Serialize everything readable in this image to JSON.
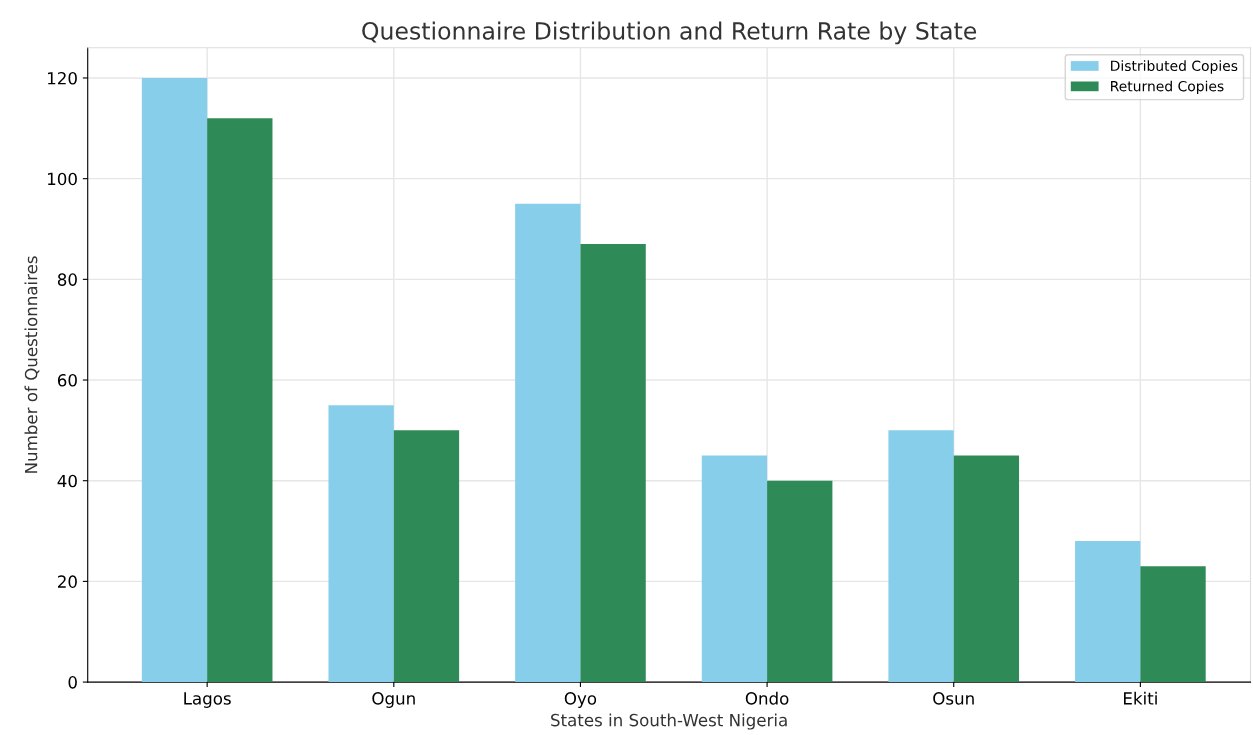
{
  "chart_data": {
    "type": "bar",
    "title": "Questionnaire Distribution and Return Rate by State",
    "xlabel": "States in South-West Nigeria",
    "ylabel": "Number of Questionnaires",
    "categories": [
      "Lagos",
      "Ogun",
      "Oyo",
      "Ondo",
      "Osun",
      "Ekiti"
    ],
    "series": [
      {
        "name": "Distributed Copies",
        "color": "#87ceeb",
        "values": [
          120,
          55,
          95,
          45,
          50,
          28
        ]
      },
      {
        "name": "Returned Copies",
        "color": "#2e8b57",
        "values": [
          112,
          50,
          87,
          40,
          45,
          23
        ]
      }
    ],
    "ylim": [
      0,
      126
    ],
    "yticks": [
      0,
      20,
      40,
      60,
      80,
      100,
      120
    ],
    "grid": true,
    "legend": "top right"
  }
}
